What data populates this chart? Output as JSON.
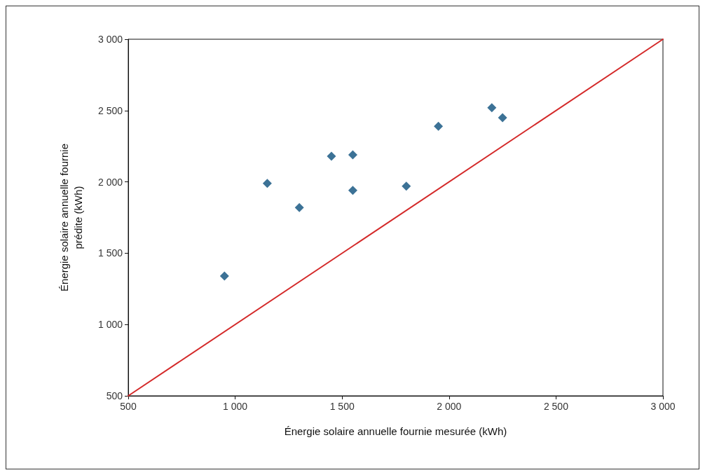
{
  "chart_data": {
    "type": "scatter",
    "xlabel": "Énergie solaire annuelle fournie mesurée (kWh)",
    "ylabel": "Énergie solaire annuelle fournie\nprédite (kWh)",
    "series": [
      {
        "color": "#0b4f7c",
        "marker": "diamond",
        "x": [
          950,
          1150,
          1300,
          1450,
          1550,
          1550,
          1800,
          1950,
          2200,
          2250
        ],
        "values": [
          1340,
          1990,
          1820,
          2180,
          2190,
          1940,
          1970,
          2390,
          2520,
          2450
        ]
      },
      {
        "type": "line",
        "color": "#d42a2a",
        "marker": "none",
        "line_style": "solid",
        "x": [
          500,
          3000
        ],
        "values": [
          500,
          3000
        ]
      }
    ],
    "xlim": [
      500,
      3000
    ],
    "ylim": [
      500,
      3000
    ],
    "xticks": [
      500,
      {
        "value": 1000,
        "label": "1 000"
      },
      {
        "value": 1500,
        "label": "1 500"
      },
      {
        "value": 2000,
        "label": "2 000"
      },
      {
        "value": 2500,
        "label": "2 500"
      },
      {
        "value": 3000,
        "label": "3 000"
      }
    ],
    "yticks": [
      500,
      {
        "value": 1000,
        "label": "1 000"
      },
      {
        "value": 1500,
        "label": "1 500"
      },
      {
        "value": 2000,
        "label": "2 000"
      },
      {
        "value": 2500,
        "label": "2 500"
      },
      {
        "value": 3000,
        "label": "3 000"
      }
    ]
  }
}
